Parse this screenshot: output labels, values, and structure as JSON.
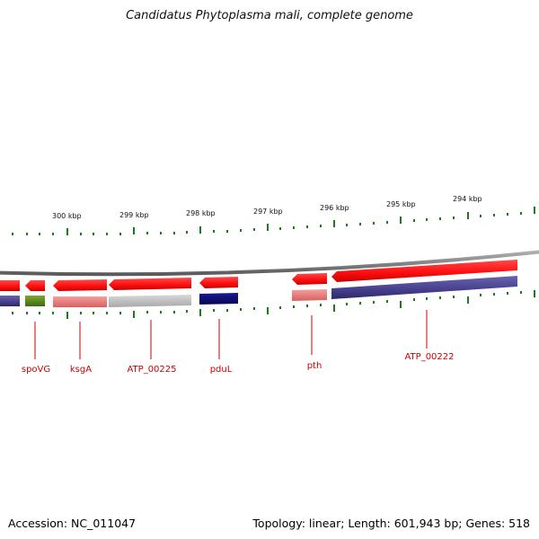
{
  "title": "Candidatus Phytoplasma mali, complete genome",
  "footer": {
    "accession": "Accession: NC_011047",
    "summary": "Topology: linear; Length: 601,943 bp; Genes: 518"
  },
  "scale_labels": [
    "300 kbp",
    "299 kbp",
    "298 kbp",
    "297 kbp",
    "296 kbp",
    "295 kbp",
    "294 kbp"
  ],
  "gene_labels": [
    "spoVG",
    "ksgA",
    "ATP_00225",
    "pduL",
    "pth",
    "ATP_00222"
  ],
  "colors": {
    "tick": "#1e7a1e",
    "gene_label": "#cc0000",
    "cds_red": "#ff1a1a",
    "backbone": "#8a8a8a",
    "navy": "#101070",
    "purple": "#4a4490",
    "pink": "#e88080",
    "olive": "#5d8a1e",
    "gray_feature": "#c0c0c0"
  }
}
